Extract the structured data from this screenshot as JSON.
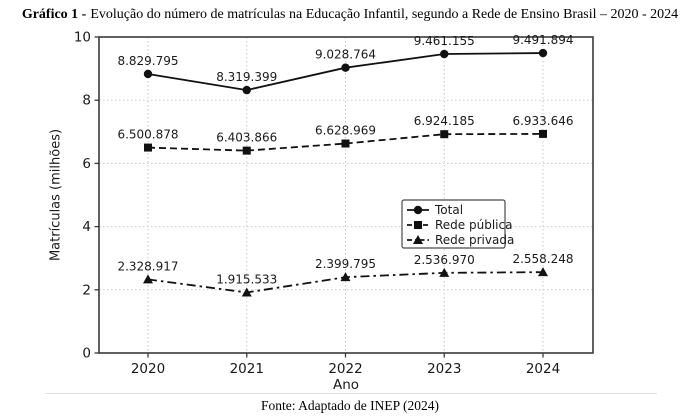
{
  "title": {
    "prefix": "Gráfico 1 -",
    "text": "Evolução do número de matrículas na Educação Infantil, segundo a Rede de Ensino Brasil – 2020 - 2024"
  },
  "source": "Fonte: Adaptado de INEP (2024)",
  "colors": {
    "line": "#111111",
    "grid": "#c9c9c9",
    "axis": "#3a3a3a",
    "text": "#1a1a1a",
    "legend_border": "#4a4a4a",
    "background": "#ffffff"
  },
  "chart_data": {
    "type": "line",
    "title": "Gráfico 1 - Evolução do número de matrículas na Educação Infantil, segundo a Rede de Ensino Brasil – 2020 - 2024",
    "categories": [
      "2020",
      "2021",
      "2022",
      "2023",
      "2024"
    ],
    "series": [
      {
        "name": "Total",
        "marker": "circle",
        "linestyle": "solid",
        "values": [
          8829795,
          8319399,
          9028764,
          9461155,
          9491894
        ],
        "labels": [
          "8.829.795",
          "8.319.399",
          "9.028.764",
          "9.461.155",
          "9.491.894"
        ]
      },
      {
        "name": "Rede pública",
        "marker": "square",
        "linestyle": "dashed",
        "values": [
          6500878,
          6403866,
          6628969,
          6924185,
          6933646
        ],
        "labels": [
          "6.500.878",
          "6.403.866",
          "6.628.969",
          "6.924.185",
          "6.933.646"
        ]
      },
      {
        "name": "Rede privada",
        "marker": "triangle",
        "linestyle": "dashdot",
        "values": [
          2328917,
          1915533,
          2399795,
          2536970,
          2558248
        ],
        "labels": [
          "2.328.917",
          "1.915.533",
          "2.399.795",
          "2.536.970",
          "2.558.248"
        ]
      }
    ],
    "xlabel": "Ano",
    "ylabel": "Matrículas (milhões)",
    "ylim": [
      0,
      10
    ],
    "yticks": [
      0,
      2,
      4,
      6,
      8,
      10
    ],
    "unit_divisor": 1000000,
    "grid": true,
    "legend_position": "inside center-right"
  }
}
